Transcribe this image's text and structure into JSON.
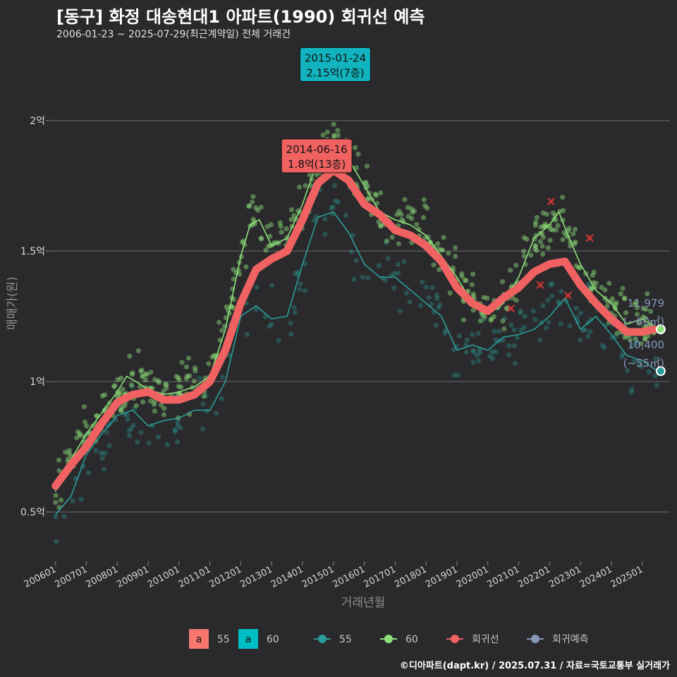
{
  "header": {
    "title": "[동구] 화정 대송현대1 아파트(1990) 회귀선 예측",
    "subtitle": "2006-01-23 ~ 2025-07-29(최근계약일) 전체 거래건"
  },
  "footer": {
    "caption": "©디아파트(dapt.kr) / 2025.07.31 / 자료=국토교통부 실거래가"
  },
  "chart_data": {
    "type": "line",
    "xlabel": "거래년월",
    "ylabel": "매매가(원)",
    "ylim": [
      0.3,
      2.3
    ],
    "x_range": [
      2005.8,
      2025.9
    ],
    "y_ticks": [
      {
        "value": 0.5,
        "label": "0.5억"
      },
      {
        "value": 1.0,
        "label": "1억"
      },
      {
        "value": 1.5,
        "label": "1.5억"
      },
      {
        "value": 2.0,
        "label": "2억"
      }
    ],
    "x_ticks": [
      {
        "value": 2006,
        "label": "200601"
      },
      {
        "value": 2007,
        "label": "200701"
      },
      {
        "value": 2008,
        "label": "200801"
      },
      {
        "value": 2009,
        "label": "200901"
      },
      {
        "value": 2010,
        "label": "201001"
      },
      {
        "value": 2011,
        "label": "201101"
      },
      {
        "value": 2012,
        "label": "201201"
      },
      {
        "value": 2013,
        "label": "201301"
      },
      {
        "value": 2014,
        "label": "201401"
      },
      {
        "value": 2015,
        "label": "201501"
      },
      {
        "value": 2016,
        "label": "201601"
      },
      {
        "value": 2017,
        "label": "201701"
      },
      {
        "value": 2018,
        "label": "201801"
      },
      {
        "value": 2019,
        "label": "201901"
      },
      {
        "value": 2020,
        "label": "202001"
      },
      {
        "value": 2021,
        "label": "202101"
      },
      {
        "value": 2022,
        "label": "202201"
      },
      {
        "value": 2023,
        "label": "202301"
      },
      {
        "value": 2024,
        "label": "202401"
      },
      {
        "value": 2025,
        "label": "202501"
      }
    ],
    "series": [
      {
        "name": "55",
        "color": "#2a9d9a",
        "x": [
          2006.0,
          2006.5,
          2007.0,
          2007.5,
          2008.0,
          2008.5,
          2009.0,
          2009.5,
          2010.0,
          2010.5,
          2011.0,
          2011.5,
          2012.0,
          2012.5,
          2013.0,
          2013.5,
          2014.0,
          2014.5,
          2015.0,
          2015.5,
          2016.0,
          2016.5,
          2017.0,
          2017.5,
          2018.0,
          2018.5,
          2019.0,
          2019.5,
          2020.0,
          2020.5,
          2021.0,
          2021.5,
          2022.0,
          2022.5,
          2023.0,
          2023.5,
          2024.0,
          2024.5,
          2025.0,
          2025.5
        ],
        "y": [
          0.49,
          0.56,
          0.72,
          0.8,
          0.87,
          0.89,
          0.83,
          0.85,
          0.86,
          0.89,
          0.89,
          1.0,
          1.25,
          1.29,
          1.24,
          1.25,
          1.45,
          1.63,
          1.65,
          1.57,
          1.45,
          1.4,
          1.4,
          1.35,
          1.3,
          1.25,
          1.12,
          1.14,
          1.12,
          1.17,
          1.18,
          1.2,
          1.25,
          1.32,
          1.2,
          1.25,
          1.18,
          1.1,
          1.08,
          1.04
        ]
      },
      {
        "name": "60",
        "color": "#8fe07a",
        "x": [
          2006.0,
          2006.5,
          2007.0,
          2007.5,
          2008.0,
          2008.3,
          2008.6,
          2009.0,
          2009.5,
          2010.0,
          2010.5,
          2011.0,
          2011.5,
          2012.0,
          2012.3,
          2012.6,
          2013.0,
          2013.5,
          2014.0,
          2014.5,
          2015.0,
          2015.5,
          2016.0,
          2016.5,
          2017.0,
          2017.5,
          2018.0,
          2018.5,
          2019.0,
          2019.5,
          2020.0,
          2020.5,
          2021.0,
          2021.5,
          2022.0,
          2022.3,
          2022.6,
          2023.0,
          2023.5,
          2024.0,
          2024.5,
          2025.0,
          2025.5
        ],
        "y": [
          0.58,
          0.7,
          0.8,
          0.88,
          0.96,
          1.02,
          1.0,
          0.97,
          0.95,
          0.96,
          0.98,
          1.02,
          1.2,
          1.48,
          1.6,
          1.62,
          1.52,
          1.55,
          1.68,
          1.85,
          1.93,
          1.85,
          1.75,
          1.65,
          1.62,
          1.6,
          1.56,
          1.48,
          1.4,
          1.3,
          1.26,
          1.3,
          1.4,
          1.55,
          1.6,
          1.65,
          1.56,
          1.45,
          1.35,
          1.3,
          1.22,
          1.24,
          1.2
        ]
      },
      {
        "name": "회귀선",
        "color": "#f06262",
        "x": [
          2006.0,
          2006.5,
          2007.0,
          2007.5,
          2008.0,
          2008.5,
          2009.0,
          2009.5,
          2010.0,
          2010.5,
          2011.0,
          2011.5,
          2012.0,
          2012.5,
          2013.0,
          2013.5,
          2014.0,
          2014.5,
          2015.0,
          2015.5,
          2016.0,
          2016.5,
          2017.0,
          2017.5,
          2018.0,
          2018.5,
          2019.0,
          2019.5,
          2020.0,
          2020.5,
          2021.0,
          2021.5,
          2022.0,
          2022.5,
          2023.0,
          2023.5,
          2024.0,
          2024.5,
          2025.0,
          2025.4
        ],
        "y": [
          0.6,
          0.68,
          0.75,
          0.84,
          0.92,
          0.95,
          0.96,
          0.93,
          0.93,
          0.95,
          1.0,
          1.12,
          1.3,
          1.43,
          1.47,
          1.5,
          1.62,
          1.76,
          1.81,
          1.77,
          1.68,
          1.64,
          1.58,
          1.56,
          1.52,
          1.46,
          1.36,
          1.3,
          1.27,
          1.32,
          1.36,
          1.42,
          1.45,
          1.46,
          1.37,
          1.3,
          1.24,
          1.19,
          1.19,
          1.2
        ]
      }
    ],
    "scatter_seed": 7,
    "cancelled_points": [
      {
        "x": 2020.75,
        "y": 1.28
      },
      {
        "x": 2021.7,
        "y": 1.37
      },
      {
        "x": 2022.05,
        "y": 1.69
      },
      {
        "x": 2022.6,
        "y": 1.33
      },
      {
        "x": 2023.3,
        "y": 1.55
      }
    ],
    "annotations": [
      {
        "x": 2014.46,
        "y": 1.8,
        "line1": "2014-06-16",
        "line2": "1.8억(13층)",
        "color": "#f06262"
      },
      {
        "x": 2015.06,
        "y": 2.15,
        "line1": "2015-01-24",
        "line2": "2.15억(7층)",
        "color": "#11b3be"
      }
    ],
    "end_labels": [
      {
        "x": 2025.6,
        "y": 1.2,
        "line1": "11,979",
        "line2": "(~60㎡)",
        "color": "#8fe07a"
      },
      {
        "x": 2025.6,
        "y": 1.04,
        "line1": "10,400",
        "line2": "(~55㎡)",
        "color": "#2a9d9a"
      }
    ],
    "legend": {
      "placement": "bottom",
      "fill_items": [
        {
          "key": "a",
          "label": "55",
          "color": "#f8766d"
        },
        {
          "key": "a",
          "label": "60",
          "color": "#00bfc4"
        }
      ],
      "line_items": [
        {
          "label": "55",
          "color": "#2a9d9a"
        },
        {
          "label": "60",
          "color": "#8fe07a"
        },
        {
          "label": "회귀선",
          "color": "#f06262"
        },
        {
          "label": "회귀예측",
          "color": "#8797b8"
        }
      ]
    }
  }
}
